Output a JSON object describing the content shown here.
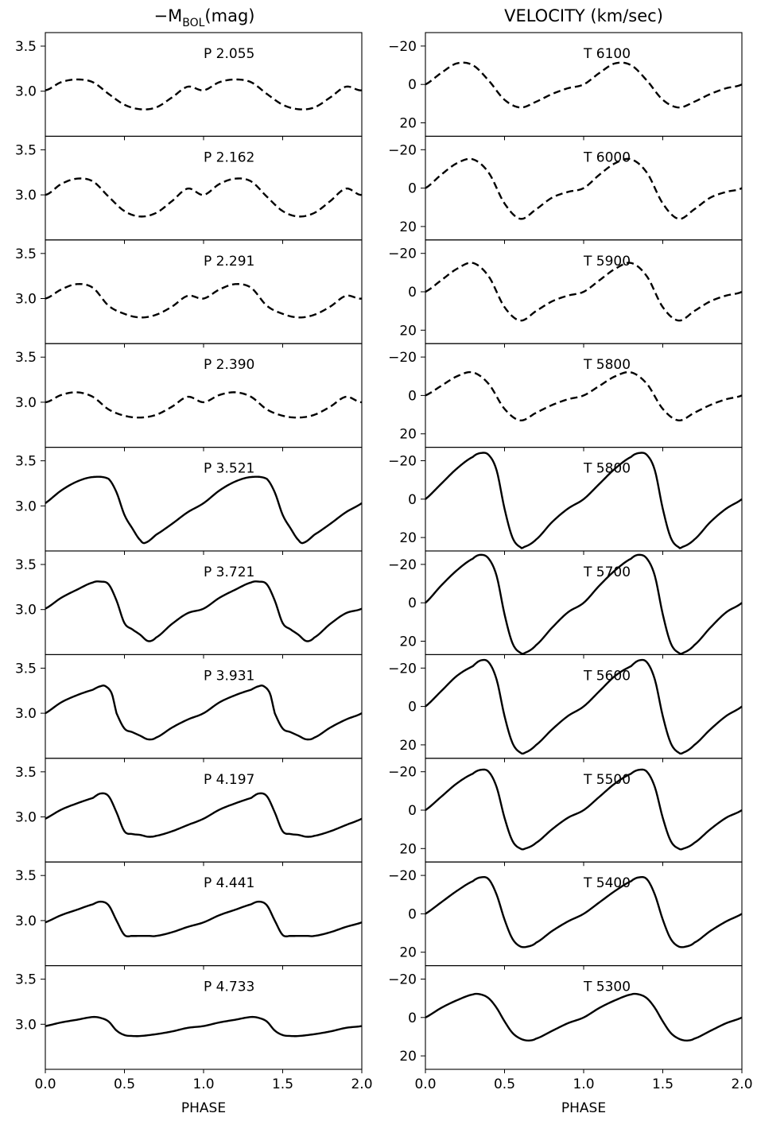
{
  "chart_data": [
    {
      "type": "line",
      "column": "left",
      "title_main": "−M",
      "title_sub": "BOL",
      "title_rest": "(mag)",
      "xlabel": "PHASE",
      "xlim": [
        0,
        2
      ],
      "ylim": [
        3.65,
        2.5
      ],
      "ytick_labels": [
        "3.5",
        "3.0"
      ],
      "yticks": [
        3.5,
        3.0
      ],
      "xtick_labels": [
        "0.0",
        "0.5",
        "1.0",
        "1.5",
        "2.0"
      ],
      "xticks": [
        0,
        0.5,
        1.0,
        1.5,
        2.0
      ],
      "panels": [
        {
          "label": "P 2.055",
          "style": "dashed",
          "x": [
            0,
            0.1,
            0.2,
            0.3,
            0.4,
            0.5,
            0.6,
            0.7,
            0.8,
            0.9,
            1.0
          ],
          "y": [
            3.01,
            3.1,
            3.13,
            3.1,
            2.97,
            2.85,
            2.8,
            2.82,
            2.93,
            3.05,
            3.01
          ]
        },
        {
          "label": "P 2.162",
          "style": "dashed",
          "x": [
            0,
            0.1,
            0.2,
            0.3,
            0.4,
            0.5,
            0.6,
            0.7,
            0.8,
            0.9,
            1.0
          ],
          "y": [
            3.0,
            3.12,
            3.18,
            3.15,
            2.98,
            2.82,
            2.76,
            2.8,
            2.93,
            3.07,
            3.0
          ]
        },
        {
          "label": "P 2.291",
          "style": "dashed",
          "x": [
            0,
            0.1,
            0.2,
            0.3,
            0.4,
            0.5,
            0.6,
            0.7,
            0.8,
            0.9,
            1.0
          ],
          "y": [
            3.0,
            3.1,
            3.16,
            3.12,
            2.92,
            2.83,
            2.79,
            2.82,
            2.91,
            3.03,
            3.0
          ]
        },
        {
          "label": "P 2.390",
          "style": "dashed",
          "x": [
            0,
            0.1,
            0.2,
            0.3,
            0.4,
            0.5,
            0.6,
            0.7,
            0.8,
            0.9,
            1.0
          ],
          "y": [
            3.0,
            3.08,
            3.11,
            3.06,
            2.92,
            2.85,
            2.83,
            2.86,
            2.95,
            3.06,
            3.0
          ]
        },
        {
          "label": "P 3.521",
          "style": "solid",
          "x": [
            0,
            0.1,
            0.2,
            0.3,
            0.4,
            0.45,
            0.5,
            0.55,
            0.6,
            0.63,
            0.7,
            0.8,
            0.9,
            1.0
          ],
          "y": [
            3.03,
            3.17,
            3.27,
            3.32,
            3.3,
            3.15,
            2.9,
            2.75,
            2.62,
            2.59,
            2.68,
            2.8,
            2.93,
            3.03
          ]
        },
        {
          "label": "P 3.721",
          "style": "solid",
          "x": [
            0,
            0.1,
            0.2,
            0.3,
            0.35,
            0.4,
            0.45,
            0.5,
            0.55,
            0.6,
            0.65,
            0.7,
            0.8,
            0.9,
            1.0
          ],
          "y": [
            3.01,
            3.13,
            3.22,
            3.3,
            3.31,
            3.28,
            3.1,
            2.85,
            2.78,
            2.72,
            2.65,
            2.69,
            2.84,
            2.96,
            3.01
          ]
        },
        {
          "label": "P 3.931",
          "style": "solid",
          "x": [
            0,
            0.1,
            0.2,
            0.3,
            0.35,
            0.38,
            0.42,
            0.45,
            0.5,
            0.55,
            0.6,
            0.65,
            0.7,
            0.8,
            0.9,
            1.0
          ],
          "y": [
            3.0,
            3.12,
            3.2,
            3.26,
            3.3,
            3.3,
            3.22,
            3.0,
            2.83,
            2.79,
            2.75,
            2.71,
            2.73,
            2.84,
            2.93,
            3.0
          ]
        },
        {
          "label": "P 4.197",
          "style": "solid",
          "x": [
            0,
            0.1,
            0.2,
            0.3,
            0.35,
            0.4,
            0.45,
            0.5,
            0.55,
            0.6,
            0.65,
            0.7,
            0.8,
            0.9,
            1.0
          ],
          "y": [
            2.98,
            3.08,
            3.15,
            3.21,
            3.26,
            3.23,
            3.05,
            2.84,
            2.81,
            2.8,
            2.78,
            2.79,
            2.84,
            2.91,
            2.98
          ]
        },
        {
          "label": "P 4.441",
          "style": "solid",
          "x": [
            0,
            0.1,
            0.2,
            0.3,
            0.35,
            0.4,
            0.45,
            0.5,
            0.55,
            0.6,
            0.65,
            0.7,
            0.8,
            0.9,
            1.0
          ],
          "y": [
            2.98,
            3.06,
            3.12,
            3.18,
            3.21,
            3.17,
            3.0,
            2.84,
            2.83,
            2.83,
            2.83,
            2.83,
            2.87,
            2.93,
            2.98
          ]
        },
        {
          "label": "P 4.733",
          "style": "solid",
          "x": [
            0,
            0.1,
            0.2,
            0.3,
            0.35,
            0.4,
            0.45,
            0.5,
            0.55,
            0.6,
            0.7,
            0.8,
            0.9,
            1.0
          ],
          "y": [
            2.98,
            3.02,
            3.05,
            3.08,
            3.07,
            3.03,
            2.93,
            2.88,
            2.87,
            2.87,
            2.89,
            2.92,
            2.96,
            2.98
          ]
        }
      ]
    },
    {
      "type": "line",
      "column": "right",
      "title": "VELOCITY (km/sec)",
      "xlabel": "PHASE",
      "xlim": [
        0,
        2
      ],
      "ylim": [
        -27,
        27
      ],
      "ytick_labels": [
        "20",
        "0",
        "−20"
      ],
      "yticks": [
        20,
        0,
        -20
      ],
      "xtick_labels": [
        "0.0",
        "0.5",
        "1.0",
        "1.5",
        "2.0"
      ],
      "xticks": [
        0,
        0.5,
        1.0,
        1.5,
        2.0
      ],
      "panels": [
        {
          "label": "T 6100",
          "style": "dashed",
          "x": [
            0,
            0.1,
            0.2,
            0.3,
            0.4,
            0.5,
            0.6,
            0.7,
            0.8,
            0.9,
            1.0
          ],
          "y": [
            0,
            -6,
            -11,
            -10,
            -2,
            8,
            12,
            9,
            5,
            2,
            0
          ]
        },
        {
          "label": "T 6000",
          "style": "dashed",
          "x": [
            0,
            0.1,
            0.2,
            0.3,
            0.4,
            0.5,
            0.6,
            0.7,
            0.8,
            0.9,
            1.0
          ],
          "y": [
            0,
            -7,
            -13,
            -15,
            -8,
            8,
            16,
            11,
            5,
            2,
            0
          ]
        },
        {
          "label": "T 5900",
          "style": "dashed",
          "x": [
            0,
            0.1,
            0.2,
            0.3,
            0.4,
            0.5,
            0.6,
            0.7,
            0.8,
            0.9,
            1.0
          ],
          "y": [
            0,
            -6,
            -12,
            -15,
            -8,
            8,
            15,
            10,
            5,
            2,
            0
          ]
        },
        {
          "label": "T 5800",
          "style": "dashed",
          "x": [
            0,
            0.1,
            0.2,
            0.3,
            0.4,
            0.5,
            0.6,
            0.7,
            0.8,
            0.9,
            1.0
          ],
          "y": [
            0,
            -5,
            -10,
            -12,
            -6,
            7,
            13,
            9,
            5,
            2,
            0
          ]
        },
        {
          "label": "T 5800",
          "style": "solid",
          "x": [
            0,
            0.1,
            0.2,
            0.3,
            0.35,
            0.4,
            0.45,
            0.5,
            0.55,
            0.6,
            0.62,
            0.7,
            0.8,
            0.9,
            1.0
          ],
          "y": [
            0,
            -8,
            -16,
            -22,
            -24,
            -23,
            -15,
            5,
            20,
            25,
            25,
            21,
            12,
            5,
            0
          ]
        },
        {
          "label": "T 5700",
          "style": "solid",
          "x": [
            0,
            0.1,
            0.2,
            0.3,
            0.35,
            0.4,
            0.45,
            0.5,
            0.55,
            0.6,
            0.63,
            0.7,
            0.8,
            0.9,
            1.0
          ],
          "y": [
            0,
            -9,
            -17,
            -23,
            -25,
            -23,
            -14,
            6,
            21,
            26,
            26,
            22,
            13,
            5,
            0
          ]
        },
        {
          "label": "T 5600",
          "style": "solid",
          "x": [
            0,
            0.1,
            0.2,
            0.3,
            0.35,
            0.4,
            0.45,
            0.5,
            0.55,
            0.6,
            0.63,
            0.7,
            0.8,
            0.9,
            1.0
          ],
          "y": [
            0,
            -8,
            -16,
            -21,
            -24,
            -23,
            -14,
            5,
            19,
            24,
            24,
            20,
            12,
            5,
            0
          ]
        },
        {
          "label": "T 5500",
          "style": "solid",
          "x": [
            0,
            0.1,
            0.2,
            0.3,
            0.35,
            0.4,
            0.45,
            0.5,
            0.55,
            0.6,
            0.63,
            0.7,
            0.8,
            0.9,
            1.0
          ],
          "y": [
            0,
            -7,
            -14,
            -19,
            -21,
            -20,
            -12,
            4,
            16,
            20,
            20,
            17,
            10,
            4,
            0
          ]
        },
        {
          "label": "T 5400",
          "style": "solid",
          "x": [
            0,
            0.1,
            0.2,
            0.3,
            0.35,
            0.4,
            0.45,
            0.5,
            0.55,
            0.6,
            0.65,
            0.7,
            0.8,
            0.9,
            1.0
          ],
          "y": [
            0,
            -6,
            -12,
            -17,
            -19,
            -18,
            -10,
            3,
            13,
            17,
            17,
            15,
            9,
            4,
            0
          ]
        },
        {
          "label": "T 5300",
          "style": "solid",
          "x": [
            0,
            0.1,
            0.2,
            0.3,
            0.35,
            0.4,
            0.45,
            0.5,
            0.55,
            0.6,
            0.65,
            0.7,
            0.8,
            0.9,
            1.0
          ],
          "y": [
            0,
            -5,
            -9,
            -12,
            -12,
            -10,
            -5,
            2,
            8,
            11,
            12,
            11,
            7,
            3,
            0
          ]
        }
      ]
    }
  ]
}
